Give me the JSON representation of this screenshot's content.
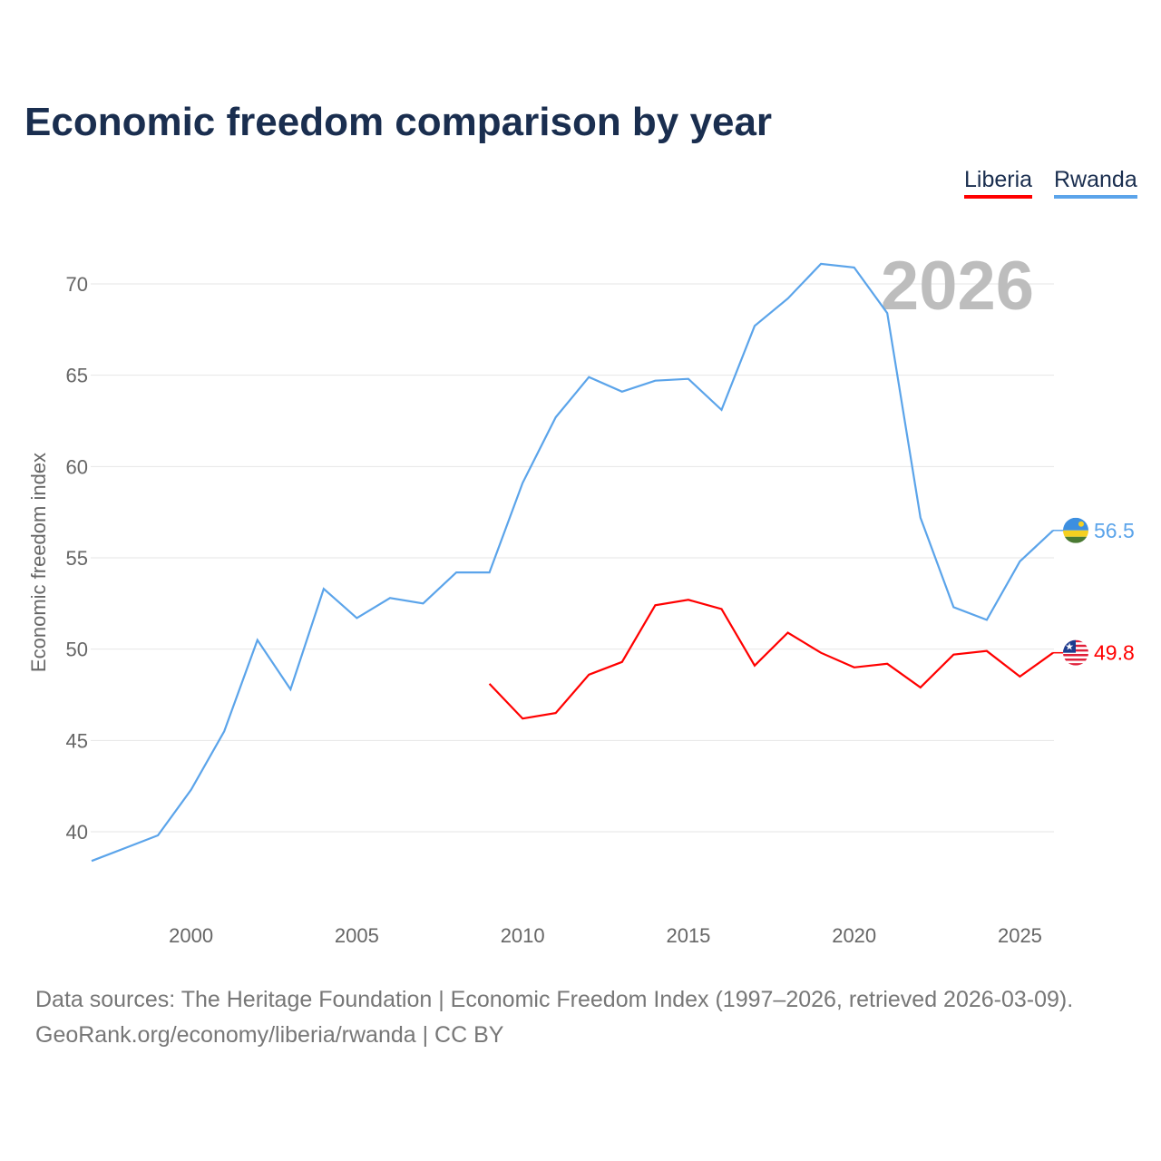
{
  "chart_data": {
    "type": "line",
    "title": "Economic freedom comparison by year",
    "xlabel": "",
    "ylabel": "Economic freedom index",
    "xlim": [
      1997,
      2026
    ],
    "ylim": [
      35.5,
      73
    ],
    "yticks": [
      40,
      45,
      50,
      55,
      60,
      65,
      70
    ],
    "xticks": [
      2000,
      2005,
      2010,
      2015,
      2020,
      2025
    ],
    "grid": true,
    "legend_placement": "top-right",
    "year_watermark": "2026",
    "series": [
      {
        "name": "Liberia",
        "color": "#ff0000",
        "end_label": "49.8",
        "x": [
          2009,
          2010,
          2011,
          2012,
          2013,
          2014,
          2015,
          2016,
          2017,
          2018,
          2019,
          2020,
          2021,
          2022,
          2023,
          2024,
          2025,
          2026
        ],
        "values": [
          48.1,
          46.2,
          46.5,
          48.6,
          49.3,
          52.4,
          52.7,
          52.2,
          49.1,
          50.9,
          49.8,
          49.0,
          49.2,
          47.9,
          49.7,
          49.9,
          48.5,
          49.8
        ]
      },
      {
        "name": "Rwanda",
        "color": "#5ba4ea",
        "end_label": "56.5",
        "x": [
          1997,
          1998,
          1999,
          2000,
          2001,
          2002,
          2003,
          2004,
          2005,
          2006,
          2007,
          2008,
          2009,
          2010,
          2011,
          2012,
          2013,
          2014,
          2015,
          2016,
          2017,
          2018,
          2019,
          2020,
          2021,
          2022,
          2023,
          2024,
          2025,
          2026
        ],
        "values": [
          38.4,
          39.1,
          39.8,
          42.3,
          45.5,
          50.5,
          47.8,
          53.3,
          51.7,
          52.8,
          52.5,
          54.2,
          54.2,
          59.1,
          62.7,
          64.9,
          64.1,
          64.7,
          64.8,
          63.1,
          67.7,
          69.2,
          71.1,
          70.9,
          68.4,
          57.2,
          52.3,
          51.6,
          54.8,
          56.5
        ]
      }
    ]
  },
  "footer": {
    "sources": "Data sources: The Heritage Foundation | Economic Freedom Index (1997–2026, retrieved 2026-03-09).",
    "credit": "GeoRank.org/economy/liberia/rwanda | CC BY"
  }
}
